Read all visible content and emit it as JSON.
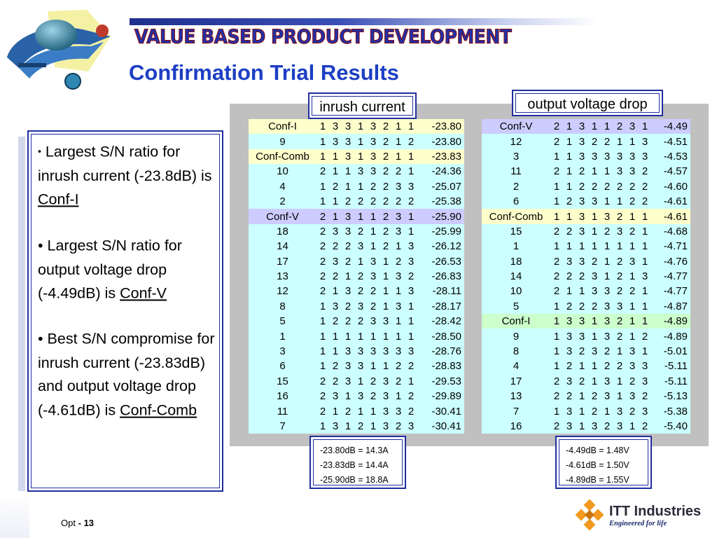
{
  "banner": "VALUE BASED PRODUCT DEVELOPMENT",
  "title": "Confirmation Trial Results",
  "labels": {
    "inrush": "inrush current",
    "voltage": "output voltage drop"
  },
  "bullets": [
    {
      "text": "Largest S/N ratio for inrush current (-23.8dB) is ",
      "link": "Conf-I"
    },
    {
      "text": "Largest S/N ratio for output voltage drop (-4.49dB) is ",
      "link": "Conf-V"
    },
    {
      "text": "Best S/N compromise for inrush current (-23.83dB) and output voltage drop (-4.61dB) is ",
      "link": "Conf-Comb"
    }
  ],
  "inrush_table": [
    {
      "name": "Conf-I",
      "levels": [
        "1",
        "3",
        "3",
        "1",
        "3",
        "2",
        "1",
        "1"
      ],
      "sn": "-23.80",
      "hl": "yellow"
    },
    {
      "name": "9",
      "levels": [
        "1",
        "3",
        "3",
        "1",
        "3",
        "2",
        "1",
        "2"
      ],
      "sn": "-23.80",
      "hl": ""
    },
    {
      "name": "Conf-Comb",
      "levels": [
        "1",
        "1",
        "3",
        "1",
        "3",
        "2",
        "1",
        "1"
      ],
      "sn": "-23.83",
      "hl": "yellow"
    },
    {
      "name": "10",
      "levels": [
        "2",
        "1",
        "1",
        "3",
        "3",
        "2",
        "2",
        "1"
      ],
      "sn": "-24.36",
      "hl": ""
    },
    {
      "name": "4",
      "levels": [
        "1",
        "2",
        "1",
        "1",
        "2",
        "2",
        "3",
        "3"
      ],
      "sn": "-25.07",
      "hl": ""
    },
    {
      "name": "2",
      "levels": [
        "1",
        "1",
        "2",
        "2",
        "2",
        "2",
        "2",
        "2"
      ],
      "sn": "-25.38",
      "hl": ""
    },
    {
      "name": "Conf-V",
      "levels": [
        "2",
        "1",
        "3",
        "1",
        "1",
        "2",
        "3",
        "1"
      ],
      "sn": "-25.90",
      "hl": "lav"
    },
    {
      "name": "18",
      "levels": [
        "2",
        "3",
        "3",
        "2",
        "1",
        "2",
        "3",
        "1"
      ],
      "sn": "-25.99",
      "hl": ""
    },
    {
      "name": "14",
      "levels": [
        "2",
        "2",
        "2",
        "3",
        "1",
        "2",
        "1",
        "3"
      ],
      "sn": "-26.12",
      "hl": ""
    },
    {
      "name": "17",
      "levels": [
        "2",
        "3",
        "2",
        "1",
        "3",
        "1",
        "2",
        "3"
      ],
      "sn": "-26.53",
      "hl": ""
    },
    {
      "name": "13",
      "levels": [
        "2",
        "2",
        "1",
        "2",
        "3",
        "1",
        "3",
        "2"
      ],
      "sn": "-26.83",
      "hl": ""
    },
    {
      "name": "12",
      "levels": [
        "2",
        "1",
        "3",
        "2",
        "2",
        "1",
        "1",
        "3"
      ],
      "sn": "-28.11",
      "hl": ""
    },
    {
      "name": "8",
      "levels": [
        "1",
        "3",
        "2",
        "3",
        "2",
        "1",
        "3",
        "1"
      ],
      "sn": "-28.17",
      "hl": ""
    },
    {
      "name": "5",
      "levels": [
        "1",
        "2",
        "2",
        "2",
        "3",
        "3",
        "1",
        "1"
      ],
      "sn": "-28.42",
      "hl": ""
    },
    {
      "name": "1",
      "levels": [
        "1",
        "1",
        "1",
        "1",
        "1",
        "1",
        "1",
        "1"
      ],
      "sn": "-28.50",
      "hl": ""
    },
    {
      "name": "3",
      "levels": [
        "1",
        "1",
        "3",
        "3",
        "3",
        "3",
        "3",
        "3"
      ],
      "sn": "-28.76",
      "hl": ""
    },
    {
      "name": "6",
      "levels": [
        "1",
        "2",
        "3",
        "3",
        "1",
        "1",
        "2",
        "2"
      ],
      "sn": "-28.83",
      "hl": ""
    },
    {
      "name": "15",
      "levels": [
        "2",
        "2",
        "3",
        "1",
        "2",
        "3",
        "2",
        "1"
      ],
      "sn": "-29.53",
      "hl": ""
    },
    {
      "name": "16",
      "levels": [
        "2",
        "3",
        "1",
        "3",
        "2",
        "3",
        "1",
        "2"
      ],
      "sn": "-29.89",
      "hl": ""
    },
    {
      "name": "11",
      "levels": [
        "2",
        "1",
        "2",
        "1",
        "1",
        "3",
        "3",
        "2"
      ],
      "sn": "-30.41",
      "hl": ""
    },
    {
      "name": "7",
      "levels": [
        "1",
        "3",
        "1",
        "2",
        "1",
        "3",
        "2",
        "3"
      ],
      "sn": "-30.41",
      "hl": ""
    }
  ],
  "voltage_table": [
    {
      "name": "Conf-V",
      "levels": [
        "2",
        "1",
        "3",
        "1",
        "1",
        "2",
        "3",
        "1"
      ],
      "sn": "-4.49",
      "hl": "lav"
    },
    {
      "name": "12",
      "levels": [
        "2",
        "1",
        "3",
        "2",
        "2",
        "1",
        "1",
        "3"
      ],
      "sn": "-4.51",
      "hl": ""
    },
    {
      "name": "3",
      "levels": [
        "1",
        "1",
        "3",
        "3",
        "3",
        "3",
        "3",
        "3"
      ],
      "sn": "-4.53",
      "hl": ""
    },
    {
      "name": "11",
      "levels": [
        "2",
        "1",
        "2",
        "1",
        "1",
        "3",
        "3",
        "2"
      ],
      "sn": "-4.57",
      "hl": ""
    },
    {
      "name": "2",
      "levels": [
        "1",
        "1",
        "2",
        "2",
        "2",
        "2",
        "2",
        "2"
      ],
      "sn": "-4.60",
      "hl": ""
    },
    {
      "name": "6",
      "levels": [
        "1",
        "2",
        "3",
        "3",
        "1",
        "1",
        "2",
        "2"
      ],
      "sn": "-4.61",
      "hl": ""
    },
    {
      "name": "Conf-Comb",
      "levels": [
        "1",
        "1",
        "3",
        "1",
        "3",
        "2",
        "1",
        "1"
      ],
      "sn": "-4.61",
      "hl": "yellow"
    },
    {
      "name": "15",
      "levels": [
        "2",
        "2",
        "3",
        "1",
        "2",
        "3",
        "2",
        "1"
      ],
      "sn": "-4.68",
      "hl": ""
    },
    {
      "name": "1",
      "levels": [
        "1",
        "1",
        "1",
        "1",
        "1",
        "1",
        "1",
        "1"
      ],
      "sn": "-4.71",
      "hl": ""
    },
    {
      "name": "18",
      "levels": [
        "2",
        "3",
        "3",
        "2",
        "1",
        "2",
        "3",
        "1"
      ],
      "sn": "-4.76",
      "hl": ""
    },
    {
      "name": "14",
      "levels": [
        "2",
        "2",
        "2",
        "3",
        "1",
        "2",
        "1",
        "3"
      ],
      "sn": "-4.77",
      "hl": ""
    },
    {
      "name": "10",
      "levels": [
        "2",
        "1",
        "1",
        "3",
        "3",
        "2",
        "2",
        "1"
      ],
      "sn": "-4.77",
      "hl": ""
    },
    {
      "name": "5",
      "levels": [
        "1",
        "2",
        "2",
        "2",
        "3",
        "3",
        "1",
        "1"
      ],
      "sn": "-4.87",
      "hl": ""
    },
    {
      "name": "Conf-I",
      "levels": [
        "1",
        "3",
        "3",
        "1",
        "3",
        "2",
        "1",
        "1"
      ],
      "sn": "-4.89",
      "hl": "green"
    },
    {
      "name": "9",
      "levels": [
        "1",
        "3",
        "3",
        "1",
        "3",
        "2",
        "1",
        "2"
      ],
      "sn": "-4.89",
      "hl": ""
    },
    {
      "name": "8",
      "levels": [
        "1",
        "3",
        "2",
        "3",
        "2",
        "1",
        "3",
        "1"
      ],
      "sn": "-5.01",
      "hl": ""
    },
    {
      "name": "4",
      "levels": [
        "1",
        "2",
        "1",
        "1",
        "2",
        "2",
        "3",
        "3"
      ],
      "sn": "-5.11",
      "hl": ""
    },
    {
      "name": "17",
      "levels": [
        "2",
        "3",
        "2",
        "1",
        "3",
        "1",
        "2",
        "3"
      ],
      "sn": "-5.11",
      "hl": ""
    },
    {
      "name": "13",
      "levels": [
        "2",
        "2",
        "1",
        "2",
        "3",
        "1",
        "3",
        "2"
      ],
      "sn": "-5.13",
      "hl": ""
    },
    {
      "name": "7",
      "levels": [
        "1",
        "3",
        "1",
        "2",
        "1",
        "3",
        "2",
        "3"
      ],
      "sn": "-5.38",
      "hl": ""
    },
    {
      "name": "16",
      "levels": [
        "2",
        "3",
        "1",
        "3",
        "2",
        "3",
        "1",
        "2"
      ],
      "sn": "-5.40",
      "hl": ""
    }
  ],
  "notes_left": [
    "-23.80dB = 14.3A",
    "-23.83dB = 14.4A",
    "-25.90dB = 18.8A"
  ],
  "notes_right": [
    "-4.49dB = 1.48V",
    "-4.61dB = 1.50V",
    "-4.89dB = 1.55V"
  ],
  "footer": {
    "prefix": "Opt",
    "sep": "-",
    "page": "13"
  },
  "company": {
    "name": "ITT Industries",
    "tagline": "Engineered for life"
  },
  "colors": {
    "title": "#1c3fc4",
    "frame": "#1f2fa0",
    "cell": "#ccffff",
    "hl_yellow": "#ffffcc",
    "hl_lav": "#ccccff",
    "hl_green": "#ccffcc",
    "panel": "#c0c0c0"
  },
  "icons": [
    "globe-arrow-logo-icon",
    "itt-diamond-logo-icon"
  ]
}
